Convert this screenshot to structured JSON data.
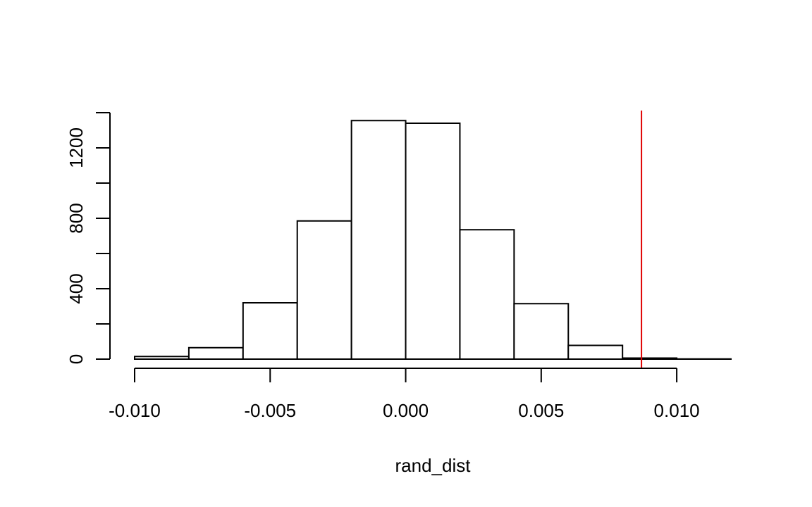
{
  "chart_data": {
    "type": "bar",
    "title": "",
    "xlabel": "rand_dist",
    "ylabel": "",
    "bins": [
      {
        "x0": -0.01,
        "x1": -0.008,
        "count": 15
      },
      {
        "x0": -0.008,
        "x1": -0.006,
        "count": 65
      },
      {
        "x0": -0.006,
        "x1": -0.004,
        "count": 320
      },
      {
        "x0": -0.004,
        "x1": -0.002,
        "count": 785
      },
      {
        "x0": -0.002,
        "x1": 0.0,
        "count": 1355
      },
      {
        "x0": 0.0,
        "x1": 0.002,
        "count": 1340
      },
      {
        "x0": 0.002,
        "x1": 0.004,
        "count": 735
      },
      {
        "x0": 0.004,
        "x1": 0.006,
        "count": 315
      },
      {
        "x0": 0.006,
        "x1": 0.008,
        "count": 78
      },
      {
        "x0": 0.008,
        "x1": 0.01,
        "count": 6
      },
      {
        "x0": 0.01,
        "x1": 0.012,
        "count": 1
      }
    ],
    "xlim": [
      -0.01,
      0.012
    ],
    "ylim": [
      0,
      1400
    ],
    "x_ticks": [
      -0.01,
      -0.005,
      0.0,
      0.005,
      0.01
    ],
    "x_tick_labels": [
      "-0.010",
      "-0.005",
      "0.000",
      "0.005",
      "0.010"
    ],
    "y_ticks": [
      0,
      200,
      400,
      600,
      800,
      1000,
      1200,
      1400
    ],
    "y_tick_labels": [
      "0",
      "400",
      "800",
      "1200"
    ],
    "y_labeled_ticks": [
      0,
      400,
      800,
      1200
    ],
    "reference_line": {
      "x": 0.0087,
      "color": "#e00000"
    },
    "bar_fill": "#ffffff",
    "bar_stroke": "#000000",
    "grid": false,
    "legend": "none"
  }
}
